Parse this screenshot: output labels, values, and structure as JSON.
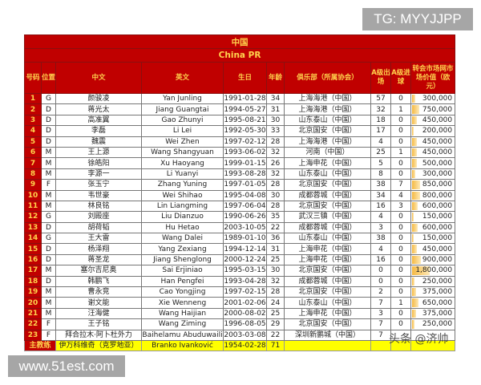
{
  "watermarks": {
    "top_right": "TG: MYYJJPP",
    "bottom_left": "www.51est.com",
    "overlay": "头条 @济帅"
  },
  "table": {
    "title_cn": "中国",
    "title_en": "China PR",
    "headers": [
      "号码",
      "位置",
      "中文",
      "英文",
      "生日",
      "年龄",
      "俱乐部（所属协会）",
      "A级出场",
      "A级进球",
      "转会市场网市场价值（欧元）"
    ],
    "max_value": 1800000,
    "colors": {
      "header_bg": "#c00000",
      "header_text": "#ffd34d",
      "coach_bg": "#ffff00",
      "bar": "#f5b942"
    },
    "rows": [
      [
        "1",
        "G",
        "颜骏凌",
        "Yan Junling",
        "1991-01-28",
        "34",
        "上海海港（中国）",
        "57",
        "0",
        "300,000"
      ],
      [
        "2",
        "D",
        "蒋光太",
        "Jiang Guangtai",
        "1994-05-27",
        "31",
        "上海海港（中国）",
        "32",
        "1",
        "750,000"
      ],
      [
        "3",
        "D",
        "高准翼",
        "Gao Zhunyi",
        "1995-08-21",
        "30",
        "山东泰山（中国）",
        "18",
        "0",
        "450,000"
      ],
      [
        "4",
        "D",
        "李磊",
        "Li Lei",
        "1992-05-30",
        "33",
        "北京国安（中国）",
        "17",
        "0",
        "200,000"
      ],
      [
        "5",
        "D",
        "魏震",
        "Wei Zhen",
        "1997-02-12",
        "28",
        "上海海港（中国）",
        "4",
        "0",
        "450,000"
      ],
      [
        "6",
        "M",
        "王上源",
        "Wang Shangyuan",
        "1993-06-02",
        "32",
        "河南（中国）",
        "25",
        "1",
        "450,000"
      ],
      [
        "7",
        "M",
        "徐皓阳",
        "Xu Haoyang",
        "1999-01-15",
        "26",
        "上海申花（中国）",
        "5",
        "0",
        "500,000"
      ],
      [
        "8",
        "M",
        "李源一",
        "Li Yuanyi",
        "1993-08-28",
        "32",
        "山东泰山（中国）",
        "8",
        "0",
        "300,000"
      ],
      [
        "9",
        "F",
        "张玉宁",
        "Zhang Yuning",
        "1997-01-05",
        "28",
        "北京国安（中国）",
        "38",
        "7",
        "850,000"
      ],
      [
        "10",
        "M",
        "韦世豪",
        "Wei Shihao",
        "1995-04-08",
        "30",
        "成都蓉城（中国）",
        "34",
        "4",
        "800,000"
      ],
      [
        "11",
        "M",
        "林良铭",
        "Lin Liangming",
        "1997-06-04",
        "28",
        "北京国安（中国）",
        "16",
        "3",
        "600,000"
      ],
      [
        "12",
        "G",
        "刘殿座",
        "Liu Dianzuo",
        "1990-06-26",
        "35",
        "武汉三镇（中国）",
        "4",
        "0",
        "150,000"
      ],
      [
        "13",
        "D",
        "胡荷韬",
        "Hu Hetao",
        "2003-10-05",
        "22",
        "成都蓉城（中国）",
        "3",
        "0",
        "600,000"
      ],
      [
        "14",
        "G",
        "王大雷",
        "Wang Dalei",
        "1989-01-10",
        "36",
        "山东泰山（中国）",
        "38",
        "0",
        "150,000"
      ],
      [
        "15",
        "D",
        "杨泽翔",
        "Yang Zexiang",
        "1994-12-14",
        "31",
        "上海申花（中国）",
        "4",
        "0",
        "450,000"
      ],
      [
        "16",
        "D",
        "蒋圣龙",
        "Jiang Shenglong",
        "2000-12-24",
        "25",
        "上海申花（中国）",
        "16",
        "0",
        "900,000"
      ],
      [
        "17",
        "M",
        "塞尔吉尼奥",
        "Sai Erjiniao",
        "1995-03-15",
        "30",
        "北京国安（中国）",
        "0",
        "0",
        "1,800,000"
      ],
      [
        "18",
        "D",
        "韩鹏飞",
        "Han Pengfei",
        "1993-04-28",
        "32",
        "成都蓉城（中国）",
        "0",
        "0",
        "250,000"
      ],
      [
        "19",
        "M",
        "曹永竞",
        "Cao Yongjing",
        "1997-02-15",
        "28",
        "北京国安（中国）",
        "2",
        "0",
        "375,000"
      ],
      [
        "20",
        "M",
        "谢文能",
        "Xie Wenneng",
        "2001-02-06",
        "24",
        "山东泰山（中国）",
        "7",
        "1",
        "650,000"
      ],
      [
        "21",
        "M",
        "汪海健",
        "Wang Haijian",
        "2000-08-02",
        "25",
        "上海申花（中国）",
        "3",
        "0",
        "375,000"
      ],
      [
        "22",
        "F",
        "王子铭",
        "Wang Ziming",
        "1996-08-05",
        "29",
        "北京国安（中国）",
        "7",
        "0",
        "250,000"
      ],
      [
        "23",
        "F",
        "拜合拉木·阿卜杜外力",
        "Baihelamu Abuduwaili",
        "2003-03-08",
        "22",
        "深圳新鹏城（中国）",
        "7",
        "",
        ""
      ]
    ],
    "coach": [
      "主教练",
      "伊万科维奇（克罗地亚）",
      "Branko Ivanković",
      "1954-02-28",
      "71"
    ]
  }
}
